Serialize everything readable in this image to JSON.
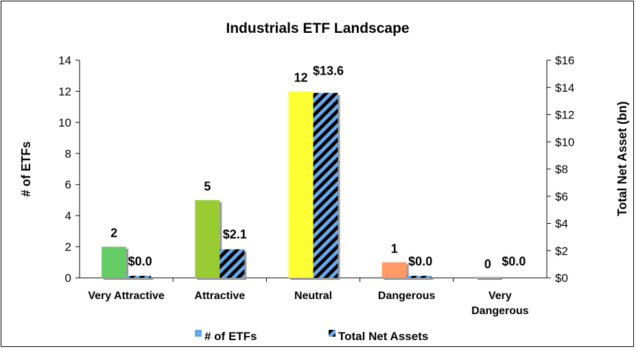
{
  "chart_data": {
    "type": "bar",
    "title": "Industrials ETF Landscape",
    "ylabel": "# of ETFs",
    "y2label": "Total Net Asset (bn)",
    "categories": [
      [
        "Very Attractive"
      ],
      [
        "Attractive"
      ],
      [
        "Neutral"
      ],
      [
        "Dangerous"
      ],
      [
        "Very",
        "Dangerous"
      ]
    ],
    "ylim": [
      0,
      14
    ],
    "y2lim": [
      0,
      16
    ],
    "yticks": [
      0,
      2,
      4,
      6,
      8,
      10,
      12,
      14
    ],
    "y2ticks": [
      "$0",
      "$2",
      "$4",
      "$6",
      "$8",
      "$10",
      "$12",
      "$14",
      "$16"
    ],
    "series": [
      {
        "name": "# of ETFs",
        "axis": "left",
        "values": [
          2,
          5,
          12,
          1,
          0
        ],
        "labels": [
          "2",
          "5",
          "12",
          "1",
          "0"
        ],
        "colors": [
          "#66cc66",
          "#99cc33",
          "#ffff33",
          "#ff9966",
          "#cccccc"
        ]
      },
      {
        "name": "Total Net Assets",
        "axis": "right",
        "values": [
          0.0,
          2.1,
          13.6,
          0.0,
          0.0
        ],
        "labels": [
          "$0.0",
          "$2.1",
          "$13.6",
          "$0.0",
          "$0.0"
        ],
        "pattern": "blue-black-diagonal"
      }
    ],
    "legend": "bottom",
    "grid": false,
    "colors": {
      "hatch_blue": "#66aaee",
      "hatch_dark": "#000000",
      "legend_blue": "#66aaee"
    }
  }
}
